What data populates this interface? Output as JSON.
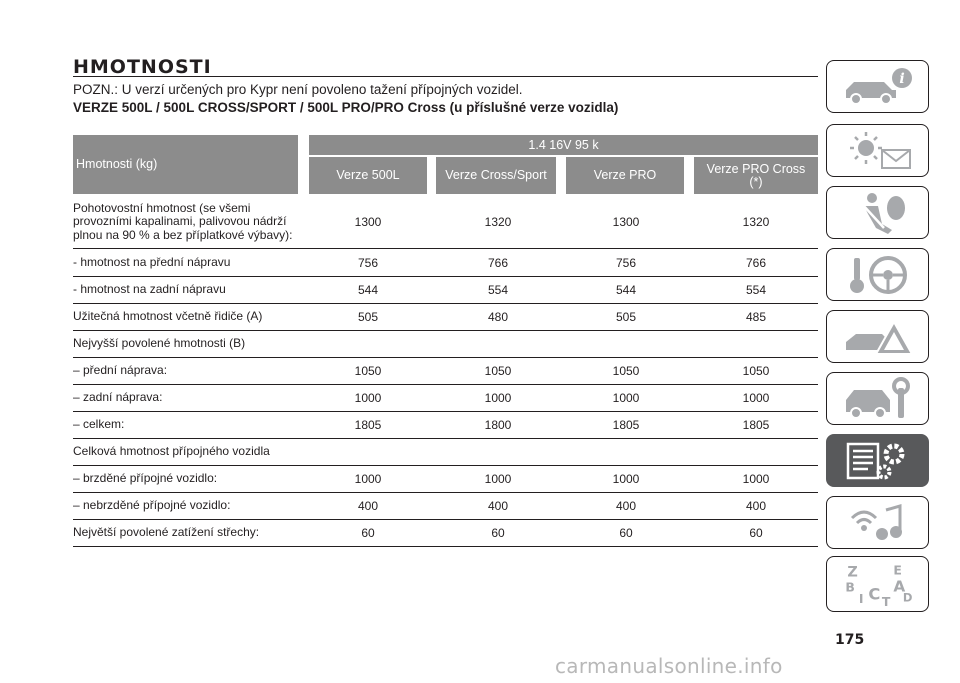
{
  "page": {
    "title": "HMOTNOSTI",
    "note": "POZN.: U verzí určených pro Kypr není povoleno tažení přípojných vozidel.",
    "subtitle": "VERZE 500L / 500L CROSS/SPORT / 500L PRO/PRO Cross (u příslušné verze vozidla)",
    "page_number": "175",
    "watermark": "carmanualsonline.info"
  },
  "table": {
    "row_header": "Hmotnosti (kg)",
    "engine": "1.4 16V 95 k",
    "columns": [
      "Verze 500L",
      "Verze Cross/Sport",
      "Verze PRO",
      "Verze PRO Cross (*)"
    ],
    "rows": [
      {
        "label": "Pohotovostní hmotnost (se všemi provozními kapalinami, palivovou nádrží plnou na 90 % a bez příplatkové výbavy):",
        "values": [
          "1300",
          "1320",
          "1300",
          "1320"
        ]
      },
      {
        "label": "- hmotnost na přední nápravu",
        "values": [
          "756",
          "766",
          "756",
          "766"
        ]
      },
      {
        "label": "- hmotnost na zadní nápravu",
        "values": [
          "544",
          "554",
          "544",
          "554"
        ]
      },
      {
        "label": "Užitečná hmotnost včetně řidiče (A)",
        "values": [
          "505",
          "480",
          "505",
          "485"
        ]
      },
      {
        "label": "Nejvyšší povolené hmotnosti (B)",
        "values": [
          "",
          "",
          "",
          ""
        ]
      },
      {
        "label": "– přední náprava:",
        "values": [
          "1050",
          "1050",
          "1050",
          "1050"
        ]
      },
      {
        "label": "– zadní náprava:",
        "values": [
          "1000",
          "1000",
          "1000",
          "1000"
        ]
      },
      {
        "label": "– celkem:",
        "values": [
          "1805",
          "1800",
          "1805",
          "1805"
        ]
      },
      {
        "label": "Celková hmotnost přípojného vozidla",
        "values": [
          "",
          "",
          "",
          ""
        ]
      },
      {
        "label": "– brzděné přípojné vozidlo:",
        "values": [
          "1000",
          "1000",
          "1000",
          "1000"
        ]
      },
      {
        "label": "– nebrzděné přípojné vozidlo:",
        "values": [
          "400",
          "400",
          "400",
          "400"
        ]
      },
      {
        "label": "Největší povolené zatížení střechy:",
        "values": [
          "60",
          "60",
          "60",
          "60"
        ]
      }
    ]
  },
  "sidebar": {
    "tabs": [
      {
        "icon": "car-info-icon"
      },
      {
        "icon": "warning-lights-message-icon"
      },
      {
        "icon": "airbag-seatbelt-icon"
      },
      {
        "icon": "key-steering-wheel-icon"
      },
      {
        "icon": "breakdown-triangle-icon"
      },
      {
        "icon": "car-maintenance-wrench-icon"
      },
      {
        "icon": "technical-data-gear-icon",
        "active": true
      },
      {
        "icon": "multimedia-music-icon"
      },
      {
        "icon": "alphabetical-index-icon"
      }
    ],
    "index_letters": [
      "Z",
      "E",
      "B",
      "A",
      "I",
      "C",
      "T",
      "D"
    ]
  }
}
